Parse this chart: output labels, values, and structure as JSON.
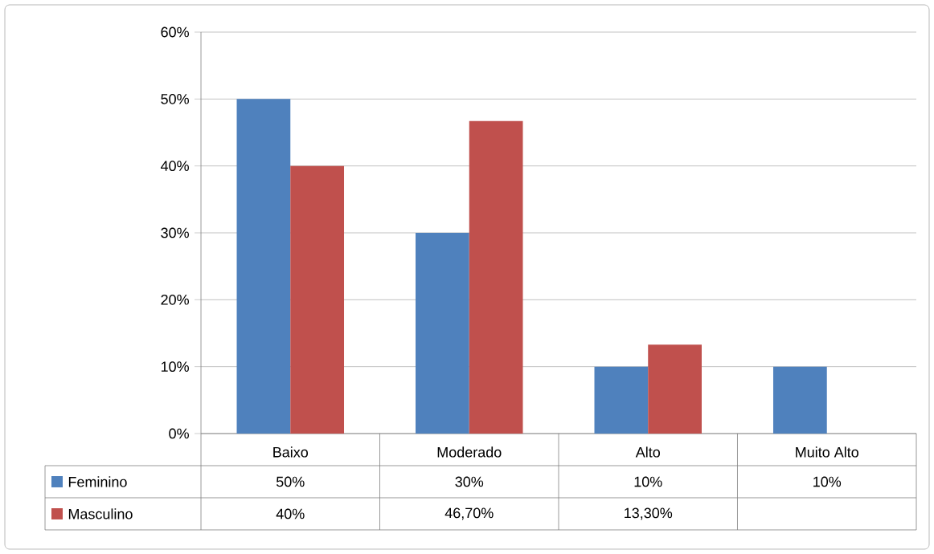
{
  "chart_data": {
    "type": "bar",
    "categories": [
      "Baixo",
      "Moderado",
      "Alto",
      "Muito Alto"
    ],
    "series": [
      {
        "name": "Feminino",
        "color": "#4f81bd",
        "values": [
          50,
          30,
          10,
          10
        ],
        "value_labels": [
          "50%",
          "30%",
          "10%",
          "10%"
        ]
      },
      {
        "name": "Masculino",
        "color": "#c0504d",
        "values": [
          40,
          46.7,
          13.3,
          null
        ],
        "value_labels": [
          "40%",
          "46,70%",
          "13,30%",
          null
        ]
      }
    ],
    "ylim": [
      0,
      60
    ],
    "yticks": [
      {
        "value": 0,
        "label": "0%"
      },
      {
        "value": 10,
        "label": "10%"
      },
      {
        "value": 20,
        "label": "20%"
      },
      {
        "value": 30,
        "label": "30%"
      },
      {
        "value": 40,
        "label": "40%"
      },
      {
        "value": 50,
        "label": "50%"
      },
      {
        "value": 60,
        "label": "60%"
      }
    ],
    "grid": "y",
    "legend": "bottom"
  }
}
